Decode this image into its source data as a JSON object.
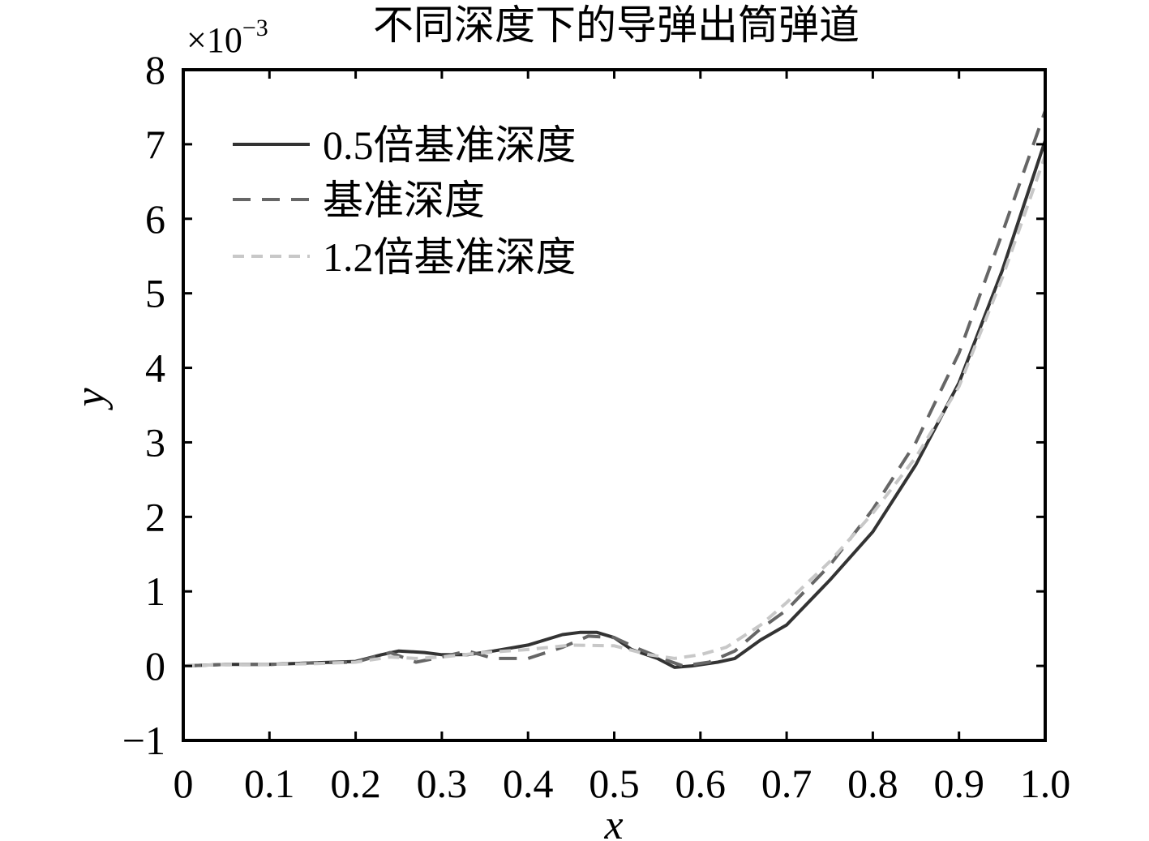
{
  "chart_data": {
    "type": "line",
    "title": "不同深度下的导弹出筒弹道",
    "xlabel": "x",
    "ylabel": "y",
    "y_multiplier_label": "×10",
    "y_multiplier_exponent": "−3",
    "xlim": [
      0,
      1.0
    ],
    "ylim": [
      -1,
      8
    ],
    "x_ticks": [
      {
        "value": 0,
        "label": "0"
      },
      {
        "value": 0.1,
        "label": "0.1"
      },
      {
        "value": 0.2,
        "label": "0.2"
      },
      {
        "value": 0.3,
        "label": "0.3"
      },
      {
        "value": 0.4,
        "label": "0.4"
      },
      {
        "value": 0.5,
        "label": "0.5"
      },
      {
        "value": 0.6,
        "label": "0.6"
      },
      {
        "value": 0.7,
        "label": "0.7"
      },
      {
        "value": 0.8,
        "label": "0.8"
      },
      {
        "value": 0.9,
        "label": "0.9"
      },
      {
        "value": 1.0,
        "label": "1.0"
      }
    ],
    "y_ticks": [
      {
        "value": -1,
        "label": "−1"
      },
      {
        "value": 0,
        "label": "0"
      },
      {
        "value": 1,
        "label": "1"
      },
      {
        "value": 2,
        "label": "2"
      },
      {
        "value": 3,
        "label": "3"
      },
      {
        "value": 4,
        "label": "4"
      },
      {
        "value": 5,
        "label": "5"
      },
      {
        "value": 6,
        "label": "6"
      },
      {
        "value": 7,
        "label": "7"
      },
      {
        "value": 8,
        "label": "8"
      }
    ],
    "grid": false,
    "legend_position": "top-left",
    "series": [
      {
        "name": "0.5倍基准深度",
        "color": "#333333",
        "dash": "solid",
        "points": [
          [
            0,
            0
          ],
          [
            0.05,
            0.02
          ],
          [
            0.1,
            0.02
          ],
          [
            0.15,
            0.04
          ],
          [
            0.2,
            0.06
          ],
          [
            0.23,
            0.15
          ],
          [
            0.25,
            0.2
          ],
          [
            0.28,
            0.18
          ],
          [
            0.3,
            0.15
          ],
          [
            0.33,
            0.15
          ],
          [
            0.36,
            0.2
          ],
          [
            0.4,
            0.28
          ],
          [
            0.44,
            0.42
          ],
          [
            0.46,
            0.45
          ],
          [
            0.48,
            0.45
          ],
          [
            0.5,
            0.38
          ],
          [
            0.52,
            0.22
          ],
          [
            0.55,
            0.1
          ],
          [
            0.57,
            -0.02
          ],
          [
            0.59,
            0
          ],
          [
            0.62,
            0.05
          ],
          [
            0.64,
            0.1
          ],
          [
            0.67,
            0.35
          ],
          [
            0.7,
            0.55
          ],
          [
            0.75,
            1.15
          ],
          [
            0.8,
            1.8
          ],
          [
            0.85,
            2.7
          ],
          [
            0.9,
            3.8
          ],
          [
            0.95,
            5.3
          ],
          [
            1.0,
            7.05
          ]
        ]
      },
      {
        "name": "基准深度",
        "color": "#666666",
        "dash": "dashed",
        "points": [
          [
            0,
            0
          ],
          [
            0.05,
            0.02
          ],
          [
            0.1,
            0.02
          ],
          [
            0.15,
            0.04
          ],
          [
            0.2,
            0.05
          ],
          [
            0.24,
            0.18
          ],
          [
            0.27,
            0.05
          ],
          [
            0.3,
            0.12
          ],
          [
            0.33,
            0.2
          ],
          [
            0.36,
            0.1
          ],
          [
            0.4,
            0.1
          ],
          [
            0.44,
            0.25
          ],
          [
            0.47,
            0.4
          ],
          [
            0.5,
            0.38
          ],
          [
            0.53,
            0.22
          ],
          [
            0.56,
            0.08
          ],
          [
            0.58,
            0
          ],
          [
            0.61,
            0.05
          ],
          [
            0.64,
            0.2
          ],
          [
            0.67,
            0.5
          ],
          [
            0.7,
            0.75
          ],
          [
            0.75,
            1.35
          ],
          [
            0.8,
            2.1
          ],
          [
            0.85,
            3.0
          ],
          [
            0.9,
            4.2
          ],
          [
            0.95,
            5.8
          ],
          [
            1.0,
            7.45
          ]
        ]
      },
      {
        "name": "1.2倍基准深度",
        "color": "#c8c8c8",
        "dash": "dashed",
        "points": [
          [
            0,
            0
          ],
          [
            0.05,
            0.02
          ],
          [
            0.1,
            0.02
          ],
          [
            0.15,
            0.03
          ],
          [
            0.2,
            0.05
          ],
          [
            0.24,
            0.12
          ],
          [
            0.27,
            0.1
          ],
          [
            0.3,
            0.12
          ],
          [
            0.35,
            0.18
          ],
          [
            0.4,
            0.22
          ],
          [
            0.45,
            0.28
          ],
          [
            0.5,
            0.27
          ],
          [
            0.54,
            0.15
          ],
          [
            0.57,
            0.1
          ],
          [
            0.6,
            0.15
          ],
          [
            0.63,
            0.25
          ],
          [
            0.67,
            0.55
          ],
          [
            0.7,
            0.85
          ],
          [
            0.75,
            1.4
          ],
          [
            0.8,
            2.05
          ],
          [
            0.85,
            2.8
          ],
          [
            0.9,
            3.75
          ],
          [
            0.95,
            5.2
          ],
          [
            1.0,
            6.85
          ]
        ]
      }
    ]
  }
}
